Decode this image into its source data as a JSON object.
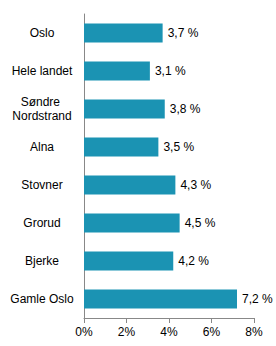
{
  "chart_data": {
    "type": "bar",
    "orientation": "horizontal",
    "categories": [
      "Oslo",
      "Hele landet",
      "Søndre Nordstrand",
      "Alna",
      "Stovner",
      "Grorud",
      "Bjerke",
      "Gamle Oslo"
    ],
    "values": [
      3.7,
      3.1,
      3.8,
      3.5,
      4.3,
      4.5,
      4.2,
      7.2
    ],
    "value_labels": [
      "3,7 %",
      "3,1 %",
      "3,8 %",
      "3,5 %",
      "4,3 %",
      "4,5 %",
      "4,2 %",
      "7,2 %"
    ],
    "data_labels": true,
    "color": "#1b93b3",
    "xlim": [
      0,
      8
    ],
    "xticks": [
      {
        "value": 0,
        "label": "0%"
      },
      {
        "value": 2,
        "label": "2%"
      },
      {
        "value": 4,
        "label": "4%"
      },
      {
        "value": 6,
        "label": "6%"
      },
      {
        "value": 8,
        "label": "8%"
      }
    ],
    "grid": false
  }
}
